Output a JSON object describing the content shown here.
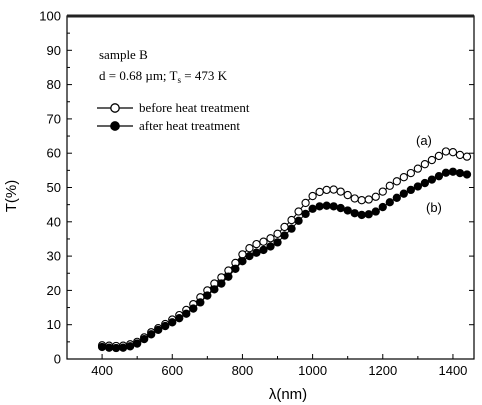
{
  "chart_data": {
    "type": "scatter",
    "xlabel": "λ(nm)",
    "ylabel": "T(%)",
    "xlim": [
      300,
      1460
    ],
    "ylim": [
      0,
      100
    ],
    "xticks": [
      400,
      600,
      800,
      1000,
      1200,
      1400
    ],
    "yticks": [
      0,
      10,
      20,
      30,
      40,
      50,
      60,
      70,
      80,
      90,
      100
    ],
    "grid": false,
    "legend_position": "top-left",
    "info_text": {
      "line1": "sample B",
      "line2_prefix": "d = 0.68 µm; T",
      "line2_sub": "s",
      "line2_suffix": " = 473 K"
    },
    "annotations": {
      "a": "(a)",
      "b": "(b)"
    },
    "series": [
      {
        "name": "before heat treatment",
        "marker": "open-circle",
        "x": [
          400,
          420,
          440,
          460,
          480,
          500,
          520,
          540,
          560,
          580,
          600,
          620,
          640,
          660,
          680,
          700,
          720,
          740,
          760,
          780,
          800,
          820,
          840,
          860,
          880,
          900,
          920,
          940,
          960,
          980,
          1000,
          1020,
          1040,
          1060,
          1080,
          1100,
          1120,
          1140,
          1160,
          1180,
          1200,
          1220,
          1240,
          1260,
          1280,
          1300,
          1320,
          1340,
          1360,
          1380,
          1400,
          1420,
          1440
        ],
        "y": [
          4.0,
          3.9,
          3.8,
          3.9,
          4.3,
          5.0,
          6.3,
          7.8,
          9.0,
          10.2,
          11.5,
          12.8,
          14.3,
          16.0,
          18.0,
          20.0,
          22.0,
          23.8,
          25.8,
          28.0,
          30.5,
          32.3,
          33.5,
          34.2,
          35.2,
          36.5,
          38.5,
          40.5,
          43.0,
          45.5,
          47.5,
          48.7,
          49.3,
          49.4,
          48.8,
          47.8,
          46.8,
          46.3,
          46.5,
          47.3,
          48.8,
          50.5,
          51.8,
          53.0,
          54.2,
          55.5,
          56.8,
          58.0,
          59.2,
          60.5,
          60.3,
          59.5,
          59.0
        ]
      },
      {
        "name": "after heat treatment",
        "marker": "filled-circle",
        "x": [
          400,
          420,
          440,
          460,
          480,
          500,
          520,
          540,
          560,
          580,
          600,
          620,
          640,
          660,
          680,
          700,
          720,
          740,
          760,
          780,
          800,
          820,
          840,
          860,
          880,
          900,
          920,
          940,
          960,
          980,
          1000,
          1020,
          1040,
          1060,
          1080,
          1100,
          1120,
          1140,
          1160,
          1180,
          1200,
          1220,
          1240,
          1260,
          1280,
          1300,
          1320,
          1340,
          1360,
          1380,
          1400,
          1420,
          1440
        ],
        "y": [
          3.5,
          3.3,
          3.2,
          3.3,
          3.7,
          4.5,
          5.8,
          7.2,
          8.5,
          9.6,
          10.7,
          11.9,
          13.2,
          14.7,
          16.5,
          18.5,
          20.3,
          22.0,
          24.0,
          26.3,
          28.5,
          30.0,
          31.0,
          31.8,
          32.8,
          34.0,
          36.0,
          38.0,
          40.3,
          42.3,
          43.8,
          44.5,
          44.7,
          44.5,
          44.0,
          43.3,
          42.5,
          42.0,
          42.2,
          43.0,
          44.3,
          45.7,
          47.0,
          48.2,
          49.3,
          50.3,
          51.3,
          52.3,
          53.3,
          54.3,
          54.6,
          54.2,
          53.8
        ]
      }
    ]
  }
}
